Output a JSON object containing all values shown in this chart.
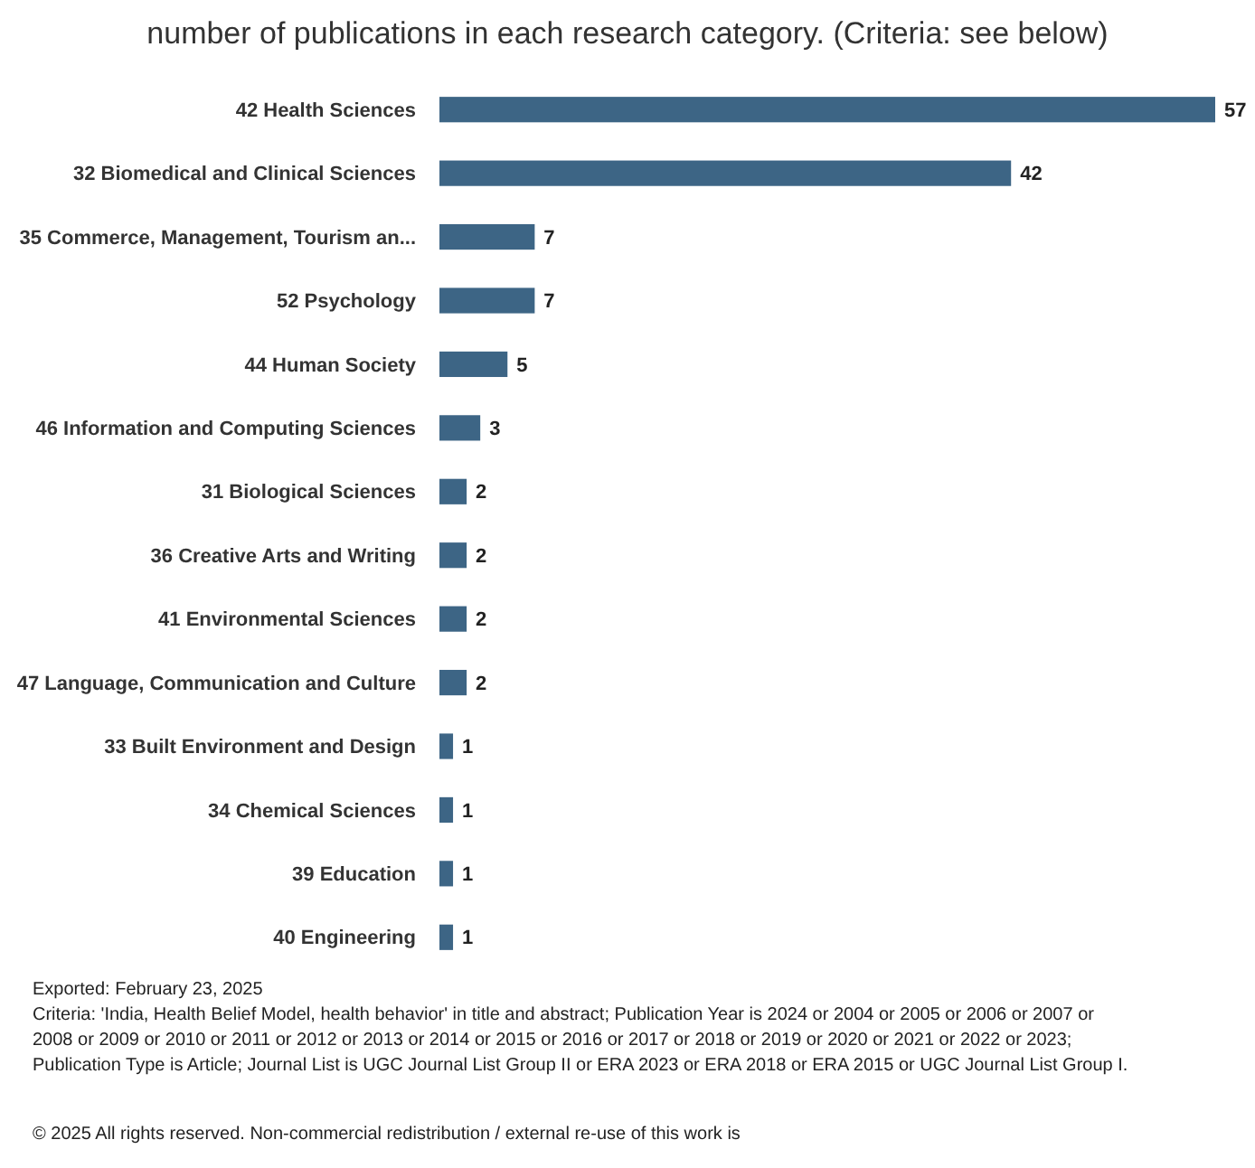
{
  "chart_data": {
    "type": "bar",
    "orientation": "horizontal",
    "title": "number of publications in each research category. (Criteria: see below)",
    "categories": [
      "42 Health Sciences",
      "32 Biomedical and Clinical Sciences",
      "35 Commerce, Management, Tourism an...",
      "52 Psychology",
      "44 Human Society",
      "46 Information and Computing Sciences",
      "31 Biological Sciences",
      "36 Creative Arts and Writing",
      "41 Environmental Sciences",
      "47 Language, Communication and Culture",
      "33 Built Environment and Design",
      "34 Chemical Sciences",
      "39 Education",
      "40 Engineering"
    ],
    "values": [
      57,
      42,
      7,
      7,
      5,
      3,
      2,
      2,
      2,
      2,
      1,
      1,
      1,
      1
    ],
    "color": "#3d6585",
    "data_labels": true,
    "annotations": [
      "Exported: February 23, 2025",
      "Criteria: 'India, Health Belief Model, health behavior' in title and abstract; Publication Year is 2024 or 2004 or 2005 or 2006 or 2007 or",
      "2008 or 2009 or 2010 or 2011 or 2012 or 2013 or 2014 or 2015 or 2016 or 2017 or 2018 or 2019 or 2020 or 2021 or 2022 or 2023;",
      "Publication Type is Article; Journal List is UGC Journal List Group II or ERA 2023 or ERA 2018 or ERA 2015 or UGC Journal List Group I.",
      "© 2025 All rights reserved. Non-commercial redistribution / external re-use of this work is"
    ]
  }
}
